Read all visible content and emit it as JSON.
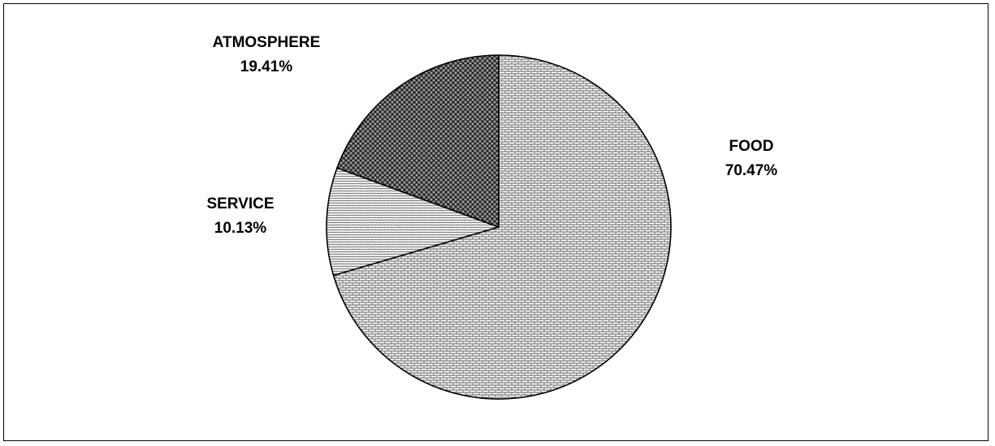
{
  "chart_data": {
    "type": "pie",
    "title": "",
    "slices": [
      {
        "label": "FOOD",
        "value": 70.47,
        "display": "70.47%",
        "pattern": "dense-brick"
      },
      {
        "label": "SERVICE",
        "value": 10.13,
        "display": "10.13%",
        "pattern": "light-wave"
      },
      {
        "label": "ATMOSPHERE",
        "value": 19.41,
        "display": "19.41%",
        "pattern": "dark-crosshatch"
      }
    ],
    "start_angle_deg": 0,
    "direction": "clockwise",
    "legend": "none",
    "colors": {
      "outline": "#000000",
      "background": "#ffffff"
    }
  }
}
